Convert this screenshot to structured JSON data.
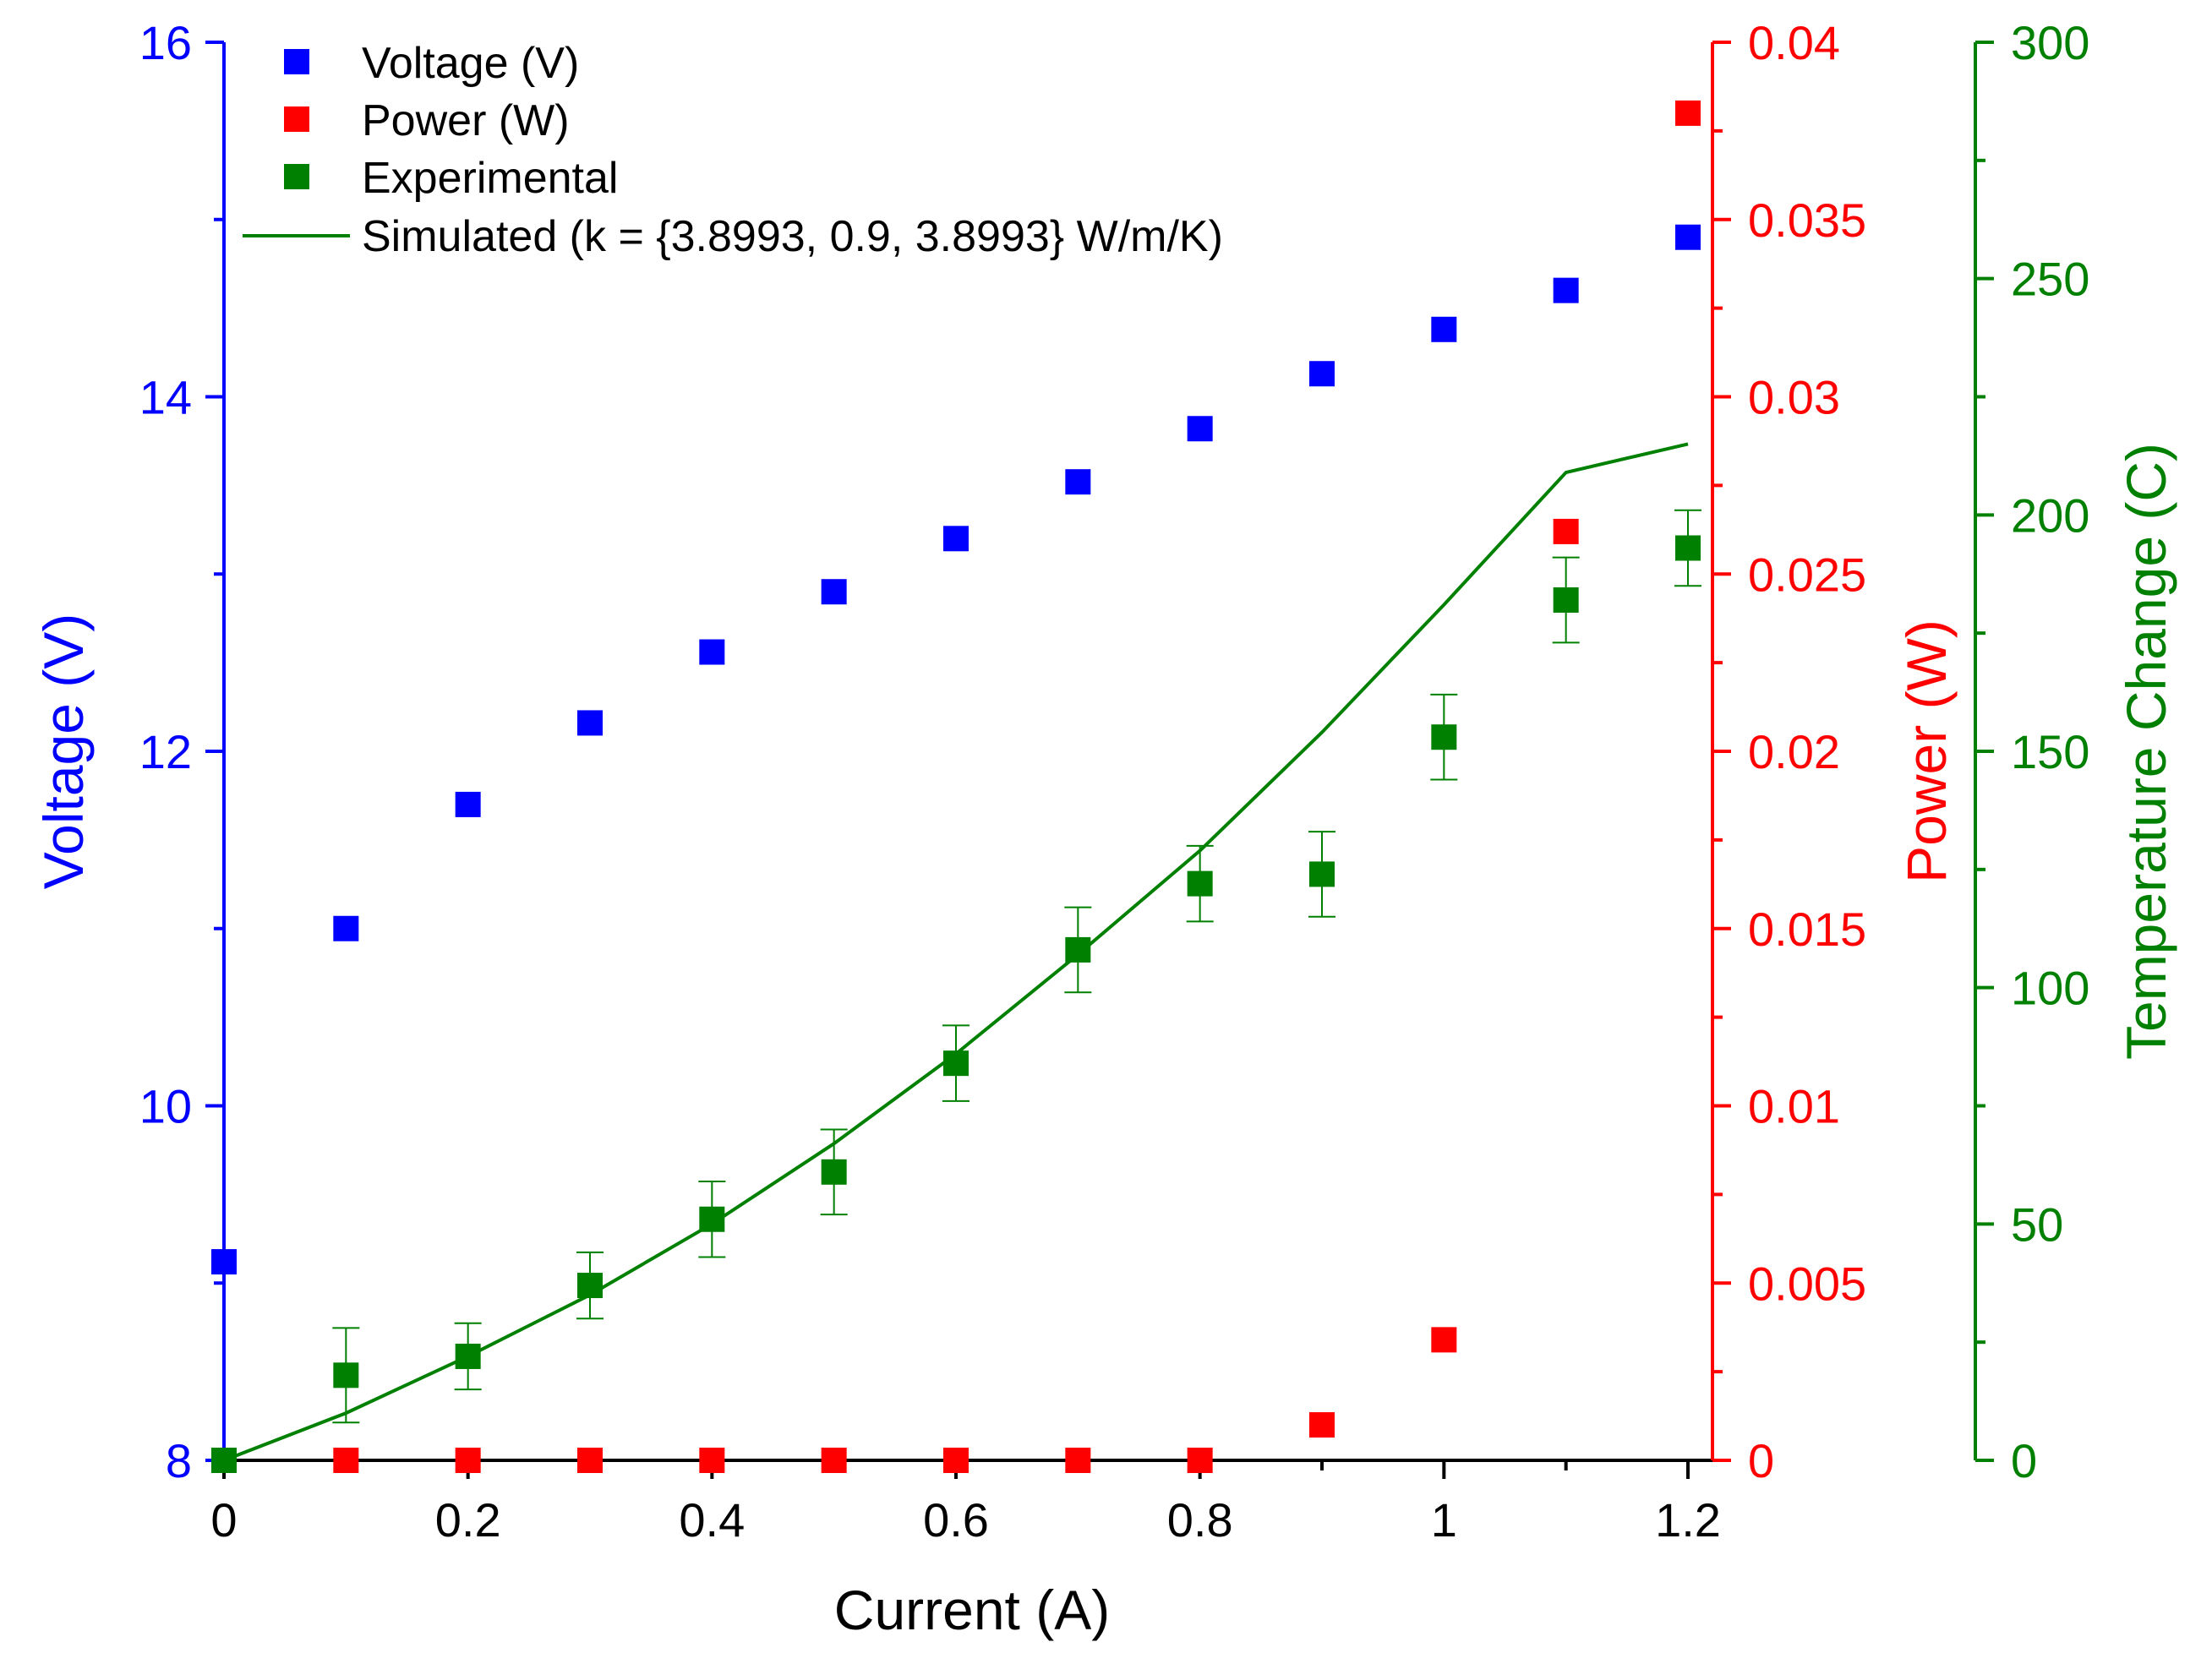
{
  "chart_data": {
    "type": "scatter",
    "title": "",
    "xlabel": "Current (A)",
    "xlim": [
      0,
      1.2
    ],
    "x": [
      0,
      0.1,
      0.2,
      0.3,
      0.4,
      0.5,
      0.6,
      0.7,
      0.8,
      0.9,
      1.0,
      1.1,
      1.2
    ],
    "x_tick_labels": [
      "0",
      "0.2",
      "0.4",
      "0.6",
      "0.8",
      "1",
      "1.2"
    ],
    "x_ticks": [
      0,
      0.2,
      0.4,
      0.6,
      0.8,
      1.0,
      1.2
    ],
    "grid": false,
    "legend_position": "top-left",
    "axes": {
      "voltage": {
        "label": "Voltage (V)",
        "side": "left",
        "color": "#0000ff",
        "ylim": [
          8,
          16
        ],
        "ticks": [
          8,
          10,
          12,
          14,
          16
        ],
        "tick_labels": [
          "8",
          "10",
          "12",
          "14",
          "16"
        ]
      },
      "power": {
        "label": "Power (W)",
        "side": "right",
        "color": "#ff0000",
        "ylim": [
          0,
          0.04
        ],
        "ticks": [
          0,
          0.005,
          0.01,
          0.015,
          0.02,
          0.025,
          0.03,
          0.035,
          0.04
        ],
        "tick_labels": [
          "0",
          "0.005",
          "0.01",
          "0.015",
          "0.02",
          "0.025",
          "0.03",
          "0.035",
          "0.04"
        ]
      },
      "temperature": {
        "label": "Temperature Change (C)",
        "side": "right-outer",
        "color": "#008000",
        "ylim": [
          0,
          300
        ],
        "ticks": [
          0,
          50,
          100,
          150,
          200,
          250,
          300
        ],
        "tick_labels": [
          "0",
          "50",
          "100",
          "150",
          "200",
          "250",
          "300"
        ]
      }
    },
    "series": [
      {
        "name": "Voltage (V)",
        "axis": "voltage",
        "kind": "scatter",
        "marker": "square",
        "color": "#0000ff",
        "values": [
          9.12,
          11.0,
          11.7,
          12.16,
          12.56,
          12.9,
          13.2,
          13.52,
          13.82,
          14.13,
          14.38,
          14.6,
          14.9
        ]
      },
      {
        "name": "Power (W)",
        "axis": "power",
        "kind": "scatter",
        "marker": "square",
        "color": "#ff0000",
        "values": [
          0,
          0,
          0,
          0,
          0,
          0,
          0,
          0,
          0,
          0.001,
          0.0034,
          0.0262,
          0.038
        ]
      },
      {
        "name": "Experimental",
        "axis": "temperature",
        "kind": "scatter",
        "marker": "square",
        "color": "#008000",
        "values": [
          0,
          18,
          22,
          37,
          51,
          61,
          84,
          108,
          122,
          124,
          153,
          182,
          193
        ],
        "errors": [
          0,
          10,
          7,
          7,
          8,
          9,
          8,
          9,
          8,
          9,
          9,
          9,
          8
        ]
      },
      {
        "name": "Simulated (k = {3.8993, 0.9, 3.8993} W/m/K)",
        "axis": "temperature",
        "kind": "line",
        "color": "#008000",
        "values": [
          0,
          10,
          22,
          35,
          50,
          67,
          86,
          107,
          129,
          154,
          181,
          209,
          215
        ]
      }
    ]
  }
}
